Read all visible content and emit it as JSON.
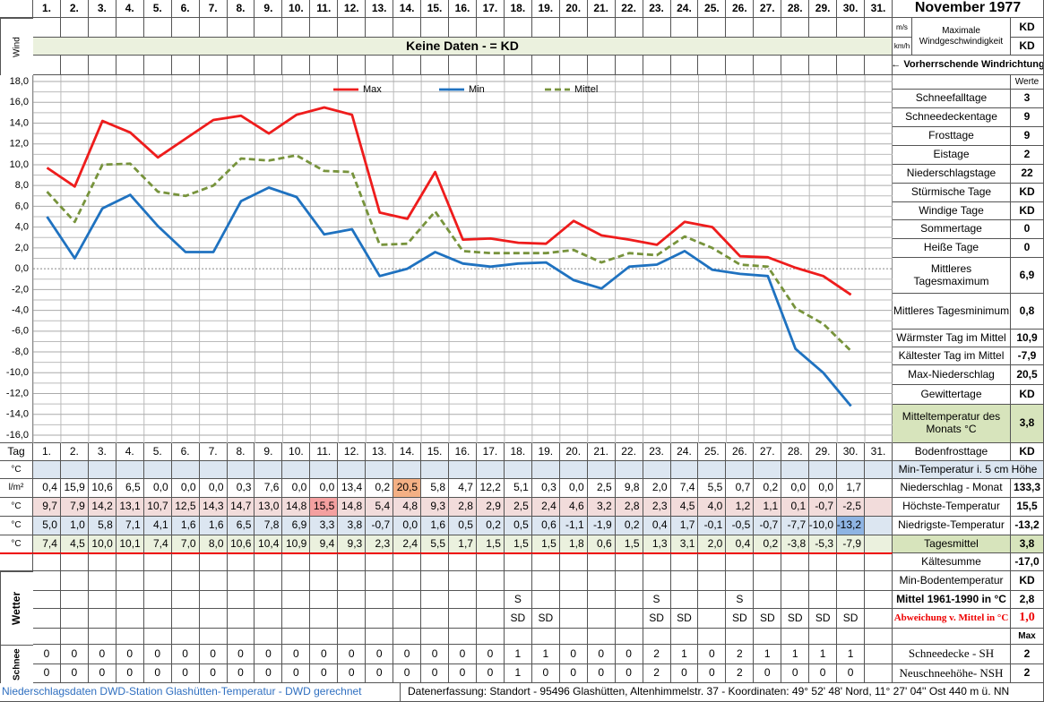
{
  "header": {
    "title": "November 1977",
    "side_label": "Wind",
    "units": [
      "m/s",
      "km/h"
    ],
    "wind_max_label": "Maximale Windgeschwindigkeit",
    "wind_max_values": [
      "KD",
      "KD"
    ],
    "no_data": "Keine Daten -  = KD",
    "wind_direction": "← Vorherrschende Windrichtung"
  },
  "chart_data": {
    "type": "line",
    "categories": [
      "1.",
      "2.",
      "3.",
      "4.",
      "5.",
      "6.",
      "7.",
      "8.",
      "9.",
      "10.",
      "11.",
      "12.",
      "13.",
      "14.",
      "15.",
      "16.",
      "17.",
      "18.",
      "19.",
      "20.",
      "21.",
      "22.",
      "23.",
      "24.",
      "25.",
      "26.",
      "27.",
      "28.",
      "29.",
      "30.",
      "31."
    ],
    "ylim": [
      -16,
      18
    ],
    "yticks": [
      {
        "value": -16,
        "label": "-16,0"
      },
      {
        "value": -14,
        "label": "-14,0"
      },
      {
        "value": -12,
        "label": "-12,0"
      },
      {
        "value": -10,
        "label": "-10,0"
      },
      {
        "value": -8,
        "label": "-8,0"
      },
      {
        "value": -6,
        "label": "-6,0"
      },
      {
        "value": -4,
        "label": "-4,0"
      },
      {
        "value": -2,
        "label": "-2,0"
      },
      {
        "value": 0,
        "label": "0,0"
      },
      {
        "value": 2,
        "label": "2,0"
      },
      {
        "value": 4,
        "label": "4,0"
      },
      {
        "value": 6,
        "label": "6,0"
      },
      {
        "value": 8,
        "label": "8,0"
      },
      {
        "value": 10,
        "label": "10,0"
      },
      {
        "value": 12,
        "label": "12,0"
      },
      {
        "value": 14,
        "label": "14,0"
      },
      {
        "value": 16,
        "label": "16,0"
      },
      {
        "value": 18,
        "label": "18,0"
      }
    ],
    "grid": true,
    "legend": "top",
    "series": [
      {
        "name": "Max",
        "color": "#ee1c1c",
        "line_style": "solid",
        "values": [
          9.7,
          7.9,
          14.2,
          13.1,
          10.7,
          12.5,
          14.3,
          14.7,
          13.0,
          14.8,
          15.5,
          14.8,
          5.4,
          4.8,
          9.3,
          2.8,
          2.9,
          2.5,
          2.4,
          4.6,
          3.2,
          2.8,
          2.3,
          4.5,
          4.0,
          1.2,
          1.1,
          0.1,
          -0.7,
          -2.5,
          null
        ],
        "value_labels": [
          "9,7",
          "7,9",
          "14,2",
          "13,1",
          "10,7",
          "12,5",
          "14,3",
          "14,7",
          "13,0",
          "14,8",
          "15,5",
          "14,8",
          "5,4",
          "4,8",
          "9,3",
          "2,8",
          "2,9",
          "2,5",
          "2,4",
          "4,6",
          "3,2",
          "2,8",
          "2,3",
          "4,5",
          "4,0",
          "1,2",
          "1,1",
          "0,1",
          "-0,7",
          "-2,5",
          null
        ]
      },
      {
        "name": "Min",
        "color": "#1f72c0",
        "line_style": "solid",
        "values": [
          5.0,
          1.0,
          5.8,
          7.1,
          4.1,
          1.6,
          1.6,
          6.5,
          7.8,
          6.9,
          3.3,
          3.8,
          -0.7,
          0.0,
          1.6,
          0.5,
          0.2,
          0.5,
          0.6,
          -1.1,
          -1.9,
          0.2,
          0.4,
          1.7,
          -0.1,
          -0.5,
          -0.7,
          -7.7,
          -10.0,
          -13.2,
          null
        ],
        "value_labels": [
          "5,0",
          "1,0",
          "5,8",
          "7,1",
          "4,1",
          "1,6",
          "1,6",
          "6,5",
          "7,8",
          "6,9",
          "3,3",
          "3,8",
          "-0,7",
          "0,0",
          "1,6",
          "0,5",
          "0,2",
          "0,5",
          "0,6",
          "-1,1",
          "-1,9",
          "0,2",
          "0,4",
          "1,7",
          "-0,1",
          "-0,5",
          "-0,7",
          "-7,7",
          "-10,0",
          "-13,2",
          null
        ]
      },
      {
        "name": "Mittel",
        "color": "#77933c",
        "line_style": "dashed",
        "values": [
          7.4,
          4.5,
          10.0,
          10.1,
          7.4,
          7.0,
          8.0,
          10.6,
          10.4,
          10.9,
          9.4,
          9.3,
          2.3,
          2.4,
          5.5,
          1.7,
          1.5,
          1.5,
          1.5,
          1.8,
          0.6,
          1.5,
          1.3,
          3.1,
          2.0,
          0.4,
          0.2,
          -3.8,
          -5.3,
          -7.9,
          null
        ],
        "value_labels": [
          "7,4",
          "4,5",
          "10,0",
          "10,1",
          "7,4",
          "7,0",
          "8,0",
          "10,6",
          "10,4",
          "10,9",
          "9,4",
          "9,3",
          "2,3",
          "2,4",
          "5,5",
          "1,7",
          "1,5",
          "1,5",
          "1,5",
          "1,8",
          "0,6",
          "1,5",
          "1,3",
          "3,1",
          "2,0",
          "0,4",
          "0,2",
          "-3,8",
          "-5,3",
          "-7,9",
          null
        ]
      }
    ]
  },
  "stats": {
    "header": "Werte",
    "rows": [
      {
        "label": "Schneefalltage",
        "value": "3"
      },
      {
        "label": "Schneedeckentage",
        "value": "9"
      },
      {
        "label": "Frosttage",
        "value": "9"
      },
      {
        "label": "Eistage",
        "value": "2"
      },
      {
        "label": "Niederschlagstage",
        "value": "22"
      },
      {
        "label": "Stürmische Tage",
        "value": "KD"
      },
      {
        "label": "Windige Tage",
        "value": "KD"
      },
      {
        "label": "Sommertage",
        "value": "0"
      },
      {
        "label": "Heiße Tage",
        "value": "0"
      },
      {
        "label": "Mittleres Tagesmaximum",
        "value": "6,9"
      },
      {
        "label": "Mittleres Tagesminimum",
        "value": "0,8"
      },
      {
        "label": "Wärmster Tag im Mittel",
        "value": "10,9"
      },
      {
        "label": "Kältester Tag im Mittel",
        "value": "-7,9"
      },
      {
        "label": "Max-Niederschlag",
        "value": "20,5"
      },
      {
        "label": "Gewittertage",
        "value": "KD"
      },
      {
        "label": "Mitteltemperatur des Monats °C",
        "value": "3,8"
      }
    ]
  },
  "table": {
    "day_label": "Tag",
    "day_summary": {
      "label": "Bodenfrosttage",
      "value": "KD"
    },
    "rows": [
      {
        "unit": "°C",
        "summary_label": "Min-Temperatur i. 5 cm Höhe"
      },
      {
        "unit": "l/m²",
        "cells": [
          "0,4",
          "15,9",
          "10,6",
          "6,5",
          "0,0",
          "0,0",
          "0,0",
          "0,3",
          "7,6",
          "0,0",
          "0,0",
          "13,4",
          "0,2",
          "20,5",
          "5,8",
          "4,7",
          "12,2",
          "5,1",
          "0,3",
          "0,0",
          "2,5",
          "9,8",
          "2,0",
          "7,4",
          "5,5",
          "0,7",
          "0,2",
          "0,0",
          "0,0",
          "1,7",
          null
        ],
        "summary_label": "Niederschlag - Monat",
        "summary_value": "133,3"
      },
      {
        "unit": "°C",
        "summary_label": "Höchste-Temperatur",
        "summary_value": "15,5"
      },
      {
        "unit": "°C",
        "summary_label": "Niedrigste-Temperatur",
        "summary_value": "-13,2"
      },
      {
        "unit": "°C",
        "summary_label": "Tagesmittel",
        "summary_value": "3,8"
      }
    ]
  },
  "summaries": [
    {
      "label": "Kältesumme",
      "value": "-17,0"
    },
    {
      "label": "Min-Bodentemperatur",
      "value": "KD"
    },
    {
      "label": "Mittel 1961-1990 in °C",
      "value": "2,8"
    },
    {
      "label": "Abweichung v. Mittel in °C",
      "value": "1,0"
    },
    {
      "value": "Max"
    }
  ],
  "weather": {
    "label": "Wetter",
    "rows": [
      [
        null,
        null,
        null,
        null,
        null,
        null,
        null,
        null,
        null,
        null,
        null,
        null,
        null,
        null,
        null,
        null,
        null,
        "S",
        null,
        null,
        null,
        null,
        "S",
        null,
        null,
        "S",
        null,
        null,
        null,
        null,
        null
      ],
      [
        null,
        null,
        null,
        null,
        null,
        null,
        null,
        null,
        null,
        null,
        null,
        null,
        null,
        null,
        null,
        null,
        null,
        "SD",
        "SD",
        null,
        null,
        null,
        "SD",
        "SD",
        null,
        "SD",
        "SD",
        "SD",
        "SD",
        "SD",
        null
      ]
    ]
  },
  "snow": {
    "label": "Schnee",
    "rows": [
      {
        "cells": [
          0,
          0,
          0,
          0,
          0,
          0,
          0,
          0,
          0,
          0,
          0,
          0,
          0,
          0,
          0,
          0,
          0,
          1,
          1,
          0,
          0,
          0,
          2,
          1,
          0,
          2,
          1,
          1,
          1,
          1,
          null
        ],
        "summary_label": "Schneedecke -  SH",
        "summary_value": "2"
      },
      {
        "cells": [
          0,
          0,
          0,
          0,
          0,
          0,
          0,
          0,
          0,
          0,
          0,
          0,
          0,
          0,
          0,
          0,
          0,
          1,
          0,
          0,
          0,
          0,
          2,
          0,
          0,
          2,
          0,
          0,
          0,
          0,
          null
        ],
        "summary_label": "Neuschneehöhe- NSH",
        "summary_value": "2"
      }
    ]
  },
  "footer": {
    "left": "Niederschlagsdaten DWD-Station Glashütten-Temperatur -  DWD gerechnet",
    "right": "Datenerfassung: Standort -  95496  Glashütten, Altenhimmelstr. 37 - Koordinaten:  49° 52' 48' Nord,  11° 27' 04'' Ost   440 m ü. NN"
  }
}
